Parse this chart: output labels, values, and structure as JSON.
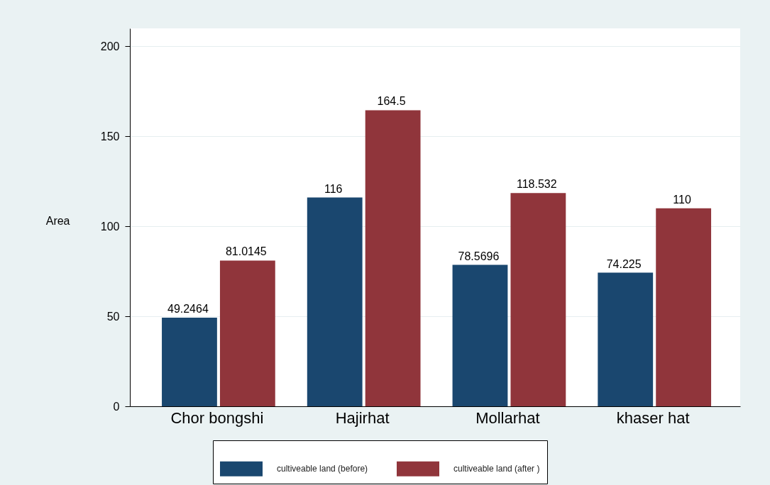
{
  "chart_data": {
    "type": "bar",
    "ylabel": "Area",
    "categories": [
      "Chor bongshi",
      "Hajirhat",
      "Mollarhat",
      "khaser hat"
    ],
    "series": [
      {
        "name": "cultiveable land (before)",
        "color": "#1a476f",
        "values": [
          49.2464,
          116,
          78.5696,
          74.225
        ]
      },
      {
        "name": "cultiveable land (after )",
        "color": "#90353b",
        "values": [
          81.0145,
          164.5,
          118.532,
          110
        ]
      }
    ],
    "ylim": [
      0,
      210
    ],
    "yticks": [
      0,
      50,
      100,
      150,
      200
    ],
    "grid": "y",
    "legend": "bottom",
    "data_labels": true
  }
}
